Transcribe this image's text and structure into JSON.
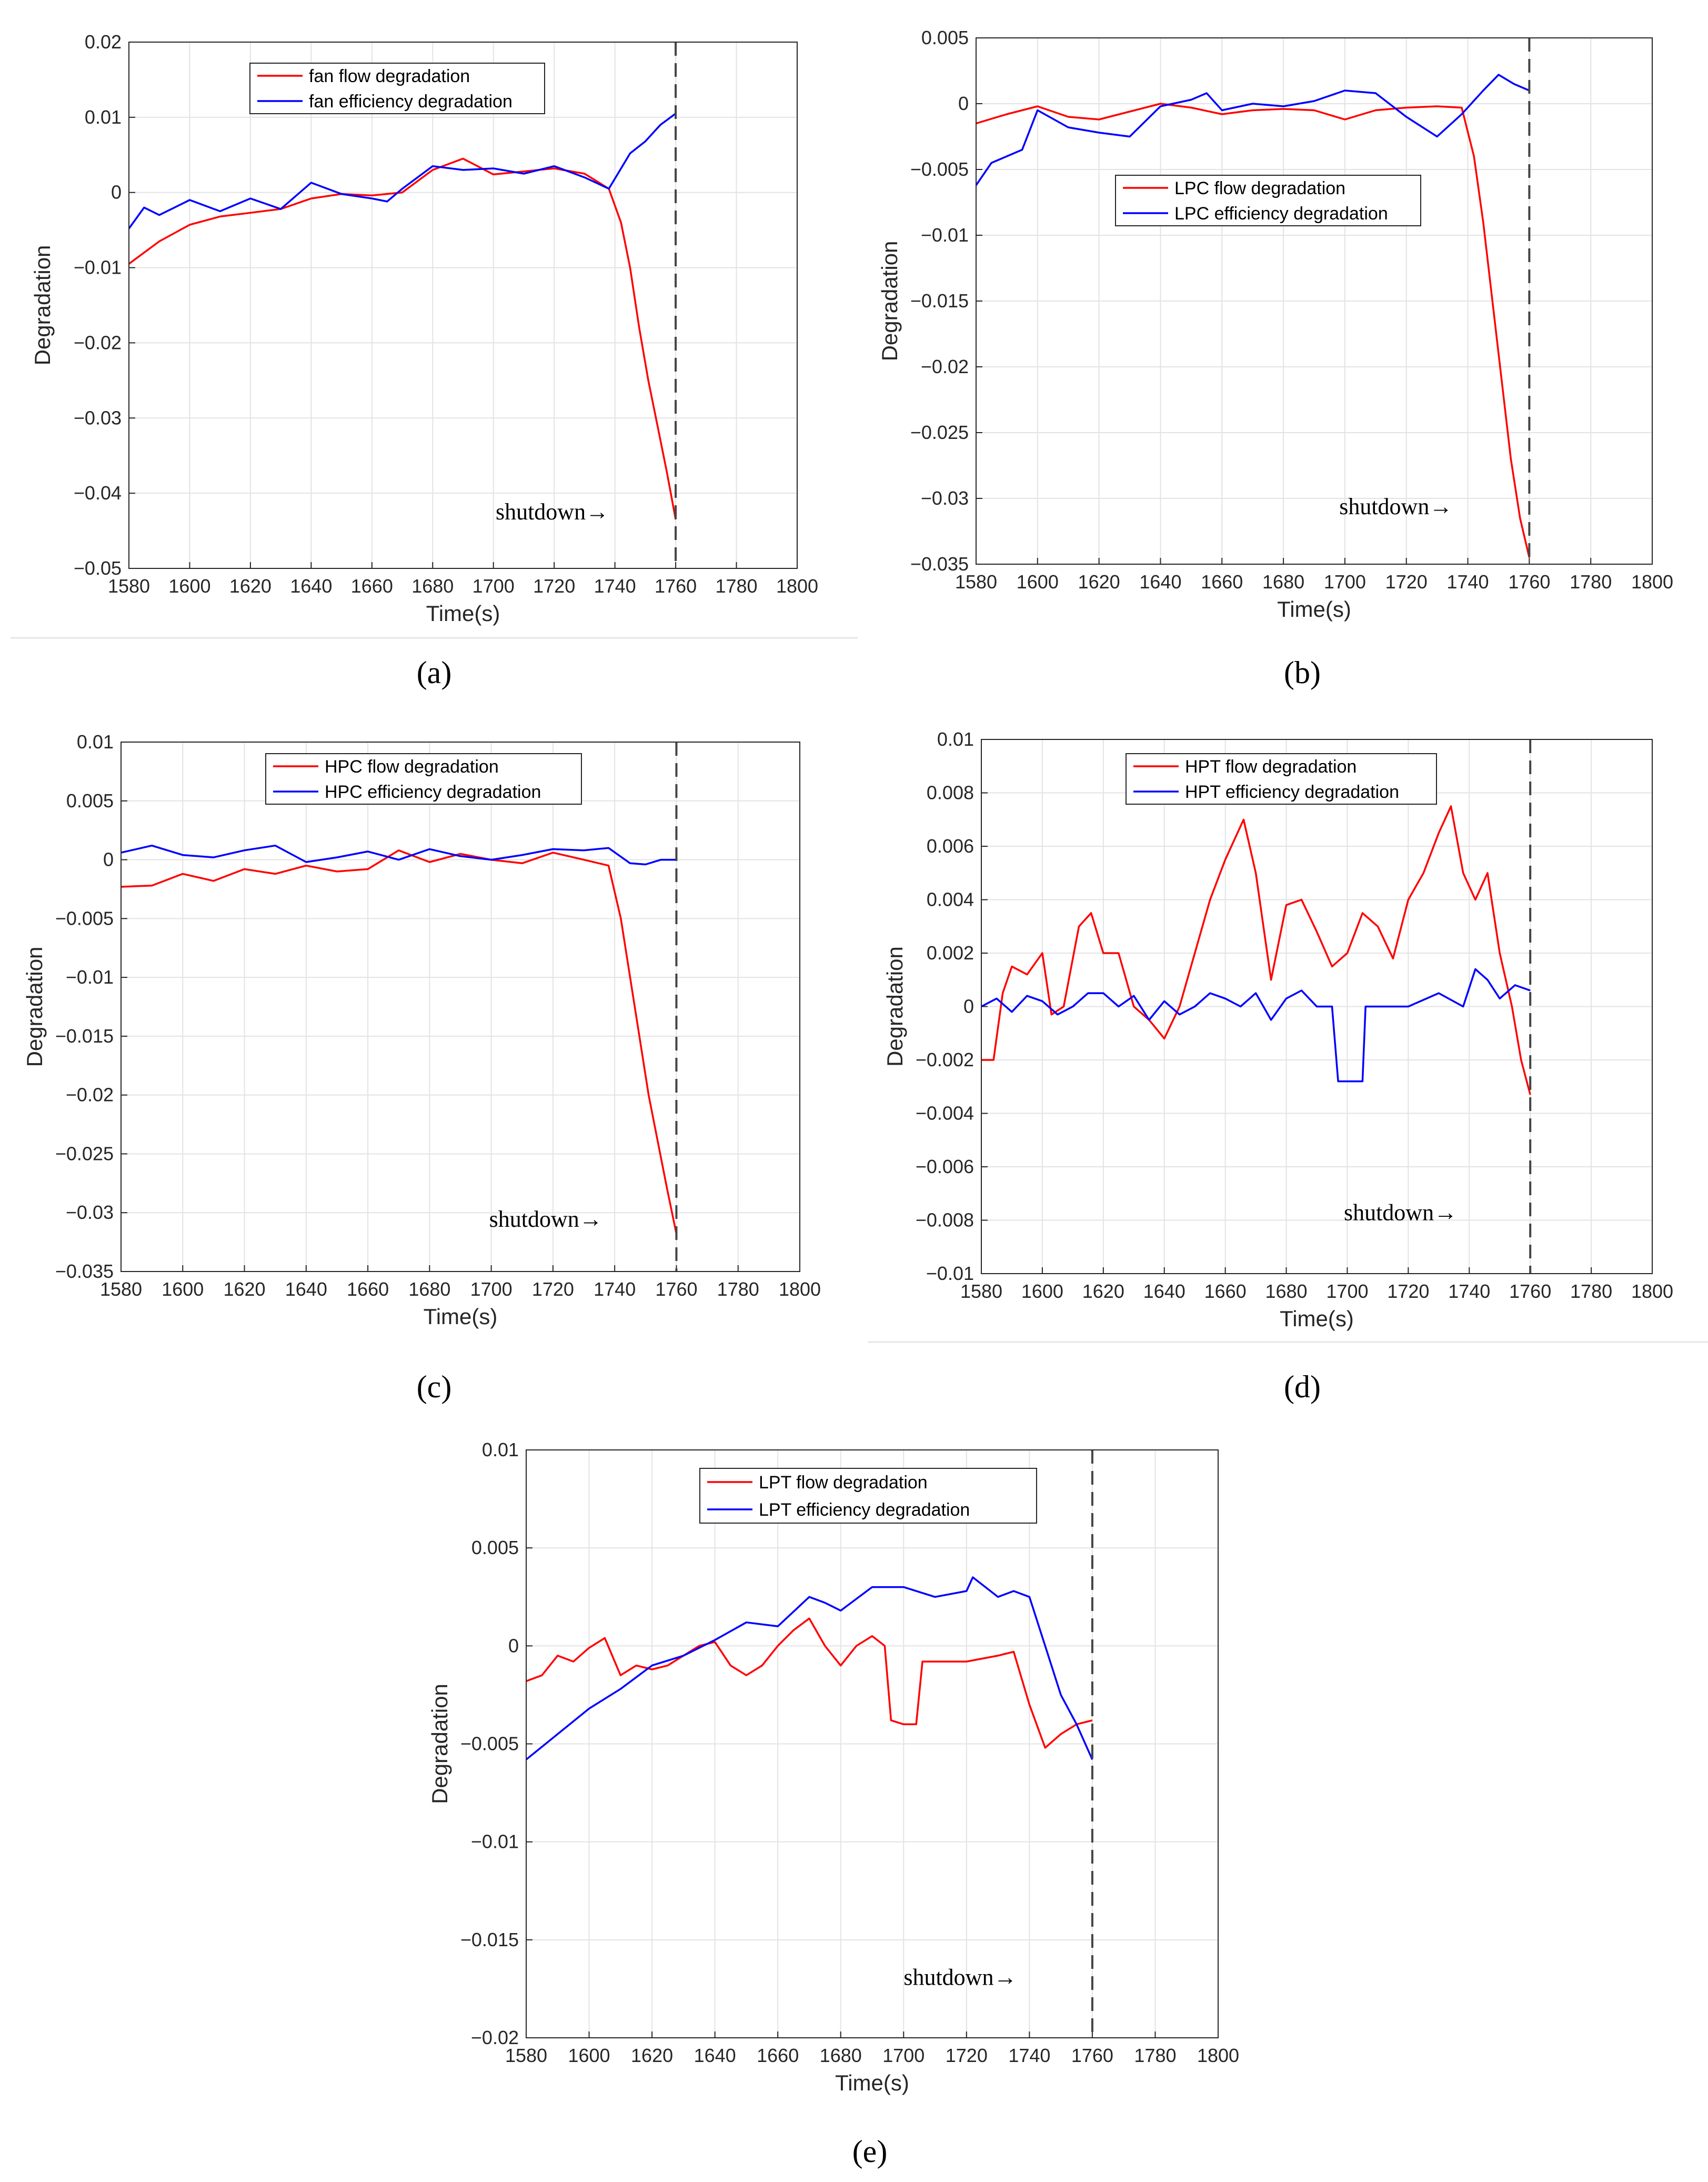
{
  "figure": {
    "captions": [
      "(a)",
      "(b)",
      "(c)",
      "(d)",
      "(e)"
    ]
  },
  "chart_data": [
    {
      "type": "line",
      "panel": "(a)",
      "xlabel": "Time(s)",
      "ylabel": "Degradation",
      "xlim": [
        1580,
        1800
      ],
      "ylim": [
        -0.05,
        0.02
      ],
      "xticks": [
        1580,
        1600,
        1620,
        1640,
        1660,
        1680,
        1700,
        1720,
        1740,
        1760,
        1780,
        1800
      ],
      "yticks": [
        -0.05,
        -0.04,
        -0.03,
        -0.02,
        -0.01,
        0,
        0.01,
        0.02
      ],
      "ytick_labels": [
        "−0.05",
        "−0.04",
        "−0.03",
        "−0.02",
        "−0.01",
        "0",
        "0.01",
        "0.02"
      ],
      "grid": true,
      "legend": "top-left",
      "vline": {
        "x": 1760,
        "style": "dashed",
        "color": "#444444"
      },
      "annotation": {
        "text": "shutdown→",
        "x": 1738,
        "y": -0.0435
      },
      "series": [
        {
          "name": "fan flow degradation",
          "color": "#ff0000",
          "x": [
            1580,
            1590,
            1600,
            1610,
            1620,
            1630,
            1640,
            1650,
            1660,
            1670,
            1680,
            1690,
            1700,
            1710,
            1720,
            1730,
            1738,
            1742,
            1745,
            1748,
            1751,
            1754,
            1757,
            1760
          ],
          "y": [
            -0.0095,
            -0.0065,
            -0.0043,
            -0.0032,
            -0.0027,
            -0.0022,
            -0.0008,
            -0.0002,
            -0.0004,
            0.0,
            0.003,
            0.0045,
            0.0024,
            0.0028,
            0.0032,
            0.0025,
            0.0005,
            -0.004,
            -0.01,
            -0.018,
            -0.025,
            -0.031,
            -0.037,
            -0.0435
          ]
        },
        {
          "name": "fan efficiency degradation",
          "color": "#0000ff",
          "x": [
            1580,
            1585,
            1590,
            1595,
            1600,
            1610,
            1620,
            1630,
            1640,
            1650,
            1660,
            1665,
            1670,
            1680,
            1690,
            1700,
            1710,
            1720,
            1730,
            1738,
            1745,
            1750,
            1755,
            1760
          ],
          "y": [
            -0.0048,
            -0.002,
            -0.003,
            -0.002,
            -0.001,
            -0.0025,
            -0.0008,
            -0.0022,
            0.0013,
            -0.0002,
            -0.0008,
            -0.0012,
            0.0005,
            0.0035,
            0.003,
            0.0032,
            0.0025,
            0.0035,
            0.002,
            0.0005,
            0.0052,
            0.0068,
            0.009,
            0.0105
          ]
        }
      ]
    },
    {
      "type": "line",
      "panel": "(b)",
      "xlabel": "Time(s)",
      "ylabel": "Degradation",
      "xlim": [
        1580,
        1800
      ],
      "ylim": [
        -0.035,
        0.005
      ],
      "xticks": [
        1580,
        1600,
        1620,
        1640,
        1660,
        1680,
        1700,
        1720,
        1740,
        1760,
        1780,
        1800
      ],
      "yticks": [
        -0.035,
        -0.03,
        -0.025,
        -0.02,
        -0.015,
        -0.01,
        -0.005,
        0,
        0.005
      ],
      "ytick_labels": [
        "−0.035",
        "−0.03",
        "−0.025",
        "−0.02",
        "−0.015",
        "−0.01",
        "−0.005",
        "0",
        "0.005"
      ],
      "grid": true,
      "legend": "upper-center",
      "vline": {
        "x": 1760,
        "style": "dashed",
        "color": "#444444"
      },
      "annotation": {
        "text": "shutdown→",
        "x": 1735,
        "y": -0.0312
      },
      "series": [
        {
          "name": "LPC flow degradation",
          "color": "#ff0000",
          "x": [
            1580,
            1590,
            1600,
            1610,
            1620,
            1630,
            1640,
            1650,
            1660,
            1670,
            1680,
            1690,
            1700,
            1710,
            1720,
            1730,
            1738,
            1742,
            1745,
            1748,
            1751,
            1754,
            1757,
            1760
          ],
          "y": [
            -0.0015,
            -0.0008,
            -0.0002,
            -0.001,
            -0.0012,
            -0.0006,
            0.0,
            -0.0003,
            -0.0008,
            -0.0005,
            -0.0004,
            -0.0005,
            -0.0012,
            -0.0005,
            -0.0003,
            -0.0002,
            -0.0003,
            -0.004,
            -0.009,
            -0.015,
            -0.021,
            -0.027,
            -0.0315,
            -0.0345
          ]
        },
        {
          "name": "LPC efficiency degradation",
          "color": "#0000ff",
          "x": [
            1580,
            1585,
            1590,
            1595,
            1600,
            1610,
            1620,
            1630,
            1640,
            1650,
            1655,
            1660,
            1670,
            1680,
            1690,
            1700,
            1710,
            1720,
            1730,
            1738,
            1745,
            1750,
            1755,
            1760
          ],
          "y": [
            -0.0062,
            -0.0045,
            -0.004,
            -0.0035,
            -0.0005,
            -0.0018,
            -0.0022,
            -0.0025,
            -0.0002,
            0.0003,
            0.0008,
            -0.0005,
            0.0,
            -0.0002,
            0.0002,
            0.001,
            0.0008,
            -0.001,
            -0.0025,
            -0.0008,
            0.001,
            0.0022,
            0.0015,
            0.001
          ]
        }
      ]
    },
    {
      "type": "line",
      "panel": "(c)",
      "xlabel": "Time(s)",
      "ylabel": "Degradation",
      "xlim": [
        1580,
        1800
      ],
      "ylim": [
        -0.035,
        0.01
      ],
      "xticks": [
        1580,
        1600,
        1620,
        1640,
        1660,
        1680,
        1700,
        1720,
        1740,
        1760,
        1780,
        1800
      ],
      "yticks": [
        -0.035,
        -0.03,
        -0.025,
        -0.02,
        -0.015,
        -0.01,
        -0.005,
        0,
        0.005,
        0.01
      ],
      "ytick_labels": [
        "−0.035",
        "−0.03",
        "−0.025",
        "−0.02",
        "−0.015",
        "−0.01",
        "−0.005",
        "0",
        "0.005",
        "0.01"
      ],
      "grid": true,
      "legend": "top-left",
      "vline": {
        "x": 1760,
        "style": "dashed",
        "color": "#444444"
      },
      "annotation": {
        "text": "shutdown→",
        "x": 1736,
        "y": -0.0312
      },
      "series": [
        {
          "name": "HPC flow degradation",
          "color": "#ff0000",
          "x": [
            1580,
            1590,
            1600,
            1610,
            1620,
            1630,
            1640,
            1650,
            1660,
            1670,
            1680,
            1690,
            1700,
            1710,
            1720,
            1730,
            1738,
            1742,
            1745,
            1748,
            1751,
            1754,
            1757,
            1760
          ],
          "y": [
            -0.0023,
            -0.0022,
            -0.0012,
            -0.0018,
            -0.0008,
            -0.0012,
            -0.0005,
            -0.001,
            -0.0008,
            0.0008,
            -0.0002,
            0.0005,
            0.0,
            -0.0003,
            0.0006,
            0.0,
            -0.0005,
            -0.005,
            -0.01,
            -0.015,
            -0.02,
            -0.024,
            -0.028,
            -0.0318
          ]
        },
        {
          "name": "HPC efficiency degradation",
          "color": "#0000ff",
          "x": [
            1580,
            1590,
            1600,
            1610,
            1620,
            1630,
            1640,
            1650,
            1660,
            1670,
            1680,
            1690,
            1700,
            1710,
            1720,
            1730,
            1738,
            1745,
            1750,
            1755,
            1760
          ],
          "y": [
            0.0006,
            0.0012,
            0.0004,
            0.0002,
            0.0008,
            0.0012,
            -0.0002,
            0.0002,
            0.0007,
            0.0,
            0.0009,
            0.0003,
            0.0,
            0.0004,
            0.0009,
            0.0008,
            0.001,
            -0.0003,
            -0.0004,
            0.0,
            0.0
          ]
        }
      ]
    },
    {
      "type": "line",
      "panel": "(d)",
      "xlabel": "Time(s)",
      "ylabel": "Degradation",
      "xlim": [
        1580,
        1800
      ],
      "ylim": [
        -0.01,
        0.01
      ],
      "xticks": [
        1580,
        1600,
        1620,
        1640,
        1660,
        1680,
        1700,
        1720,
        1740,
        1760,
        1780,
        1800
      ],
      "yticks": [
        -0.01,
        -0.008,
        -0.006,
        -0.004,
        -0.002,
        0,
        0.002,
        0.004,
        0.006,
        0.008,
        0.01
      ],
      "ytick_labels": [
        "−0.01",
        "−0.008",
        "−0.006",
        "−0.004",
        "−0.002",
        "0",
        "0.002",
        "0.004",
        "0.006",
        "0.008",
        "0.01"
      ],
      "grid": true,
      "legend": "upper-center",
      "vline": {
        "x": 1760,
        "style": "dashed",
        "color": "#444444"
      },
      "annotation": {
        "text": "shutdown→",
        "x": 1736,
        "y": -0.008
      },
      "series": [
        {
          "name": "HPT flow degradation",
          "color": "#ff0000",
          "x": [
            1580,
            1584,
            1587,
            1590,
            1595,
            1600,
            1603,
            1607,
            1612,
            1616,
            1620,
            1625,
            1630,
            1635,
            1640,
            1645,
            1650,
            1655,
            1660,
            1666,
            1670,
            1675,
            1680,
            1685,
            1690,
            1695,
            1700,
            1705,
            1710,
            1715,
            1720,
            1725,
            1730,
            1734,
            1738,
            1742,
            1746,
            1750,
            1754,
            1757,
            1760
          ],
          "y": [
            -0.002,
            -0.002,
            0.0005,
            0.0015,
            0.0012,
            0.002,
            -0.0003,
            0.0,
            0.003,
            0.0035,
            0.002,
            0.002,
            0.0,
            -0.0005,
            -0.0012,
            0.0,
            0.002,
            0.004,
            0.0055,
            0.007,
            0.005,
            0.001,
            0.0038,
            0.004,
            0.0028,
            0.0015,
            0.002,
            0.0035,
            0.003,
            0.0018,
            0.004,
            0.005,
            0.0065,
            0.0075,
            0.005,
            0.004,
            0.005,
            0.002,
            0.0,
            -0.002,
            -0.0033
          ]
        },
        {
          "name": "HPT efficiency degradation",
          "color": "#0000ff",
          "x": [
            1580,
            1585,
            1590,
            1595,
            1600,
            1605,
            1610,
            1615,
            1620,
            1625,
            1630,
            1635,
            1640,
            1645,
            1650,
            1655,
            1660,
            1665,
            1670,
            1675,
            1680,
            1685,
            1690,
            1695,
            1697,
            1700,
            1703,
            1705,
            1706,
            1710,
            1720,
            1730,
            1738,
            1742,
            1746,
            1750,
            1755,
            1760
          ],
          "y": [
            0.0,
            0.0003,
            -0.0002,
            0.0004,
            0.0002,
            -0.0003,
            0.0,
            0.0005,
            0.0005,
            0.0,
            0.0004,
            -0.0005,
            0.0002,
            -0.0003,
            0.0,
            0.0005,
            0.0003,
            0.0,
            0.0005,
            -0.0005,
            0.0003,
            0.0006,
            0.0,
            0.0,
            -0.0028,
            -0.0028,
            -0.0028,
            -0.0028,
            0.0,
            0.0,
            0.0,
            0.0005,
            0.0,
            0.0014,
            0.001,
            0.0003,
            0.0008,
            0.0006
          ]
        }
      ]
    },
    {
      "type": "line",
      "panel": "(e)",
      "xlabel": "Time(s)",
      "ylabel": "Degradation",
      "xlim": [
        1580,
        1800
      ],
      "ylim": [
        -0.02,
        0.01
      ],
      "xticks": [
        1580,
        1600,
        1620,
        1640,
        1660,
        1680,
        1700,
        1720,
        1740,
        1760,
        1780,
        1800
      ],
      "yticks": [
        -0.02,
        -0.015,
        -0.01,
        -0.005,
        0,
        0.005,
        0.01
      ],
      "ytick_labels": [
        "−0.02",
        "−0.015",
        "−0.01",
        "−0.005",
        "0",
        "0.005",
        "0.01"
      ],
      "grid": true,
      "legend": "upper-center",
      "vline": {
        "x": 1760,
        "style": "dashed",
        "color": "#444444"
      },
      "annotation": {
        "text": "shutdown→",
        "x": 1736,
        "y": -0.0173
      },
      "series": [
        {
          "name": "LPT flow degradation",
          "color": "#ff0000",
          "x": [
            1580,
            1585,
            1590,
            1595,
            1600,
            1605,
            1610,
            1615,
            1620,
            1625,
            1630,
            1635,
            1640,
            1645,
            1650,
            1655,
            1660,
            1665,
            1670,
            1675,
            1680,
            1685,
            1690,
            1694,
            1696,
            1700,
            1704,
            1706,
            1710,
            1720,
            1730,
            1735,
            1740,
            1745,
            1750,
            1755,
            1760
          ],
          "y": [
            -0.0018,
            -0.0015,
            -0.0005,
            -0.0008,
            -0.0001,
            0.0004,
            -0.0015,
            -0.001,
            -0.0012,
            -0.001,
            -0.0005,
            0.0,
            0.0002,
            -0.001,
            -0.0015,
            -0.001,
            0.0,
            0.0008,
            0.0014,
            0.0,
            -0.001,
            0.0,
            0.0005,
            0.0,
            -0.0038,
            -0.004,
            -0.004,
            -0.0008,
            -0.0008,
            -0.0008,
            -0.0005,
            -0.0003,
            -0.003,
            -0.0052,
            -0.0045,
            -0.004,
            -0.0038
          ]
        },
        {
          "name": "LPT efficiency degradation",
          "color": "#0000ff",
          "x": [
            1580,
            1590,
            1600,
            1610,
            1620,
            1630,
            1640,
            1650,
            1660,
            1670,
            1675,
            1680,
            1690,
            1700,
            1710,
            1720,
            1722,
            1730,
            1735,
            1740,
            1745,
            1750,
            1755,
            1760
          ],
          "y": [
            -0.0058,
            -0.0045,
            -0.0032,
            -0.0022,
            -0.001,
            -0.0005,
            0.0003,
            0.0012,
            0.001,
            0.0025,
            0.0022,
            0.0018,
            0.003,
            0.003,
            0.0025,
            0.0028,
            0.0035,
            0.0025,
            0.0028,
            0.0025,
            0.0,
            -0.0025,
            -0.004,
            -0.0058
          ]
        }
      ]
    }
  ]
}
